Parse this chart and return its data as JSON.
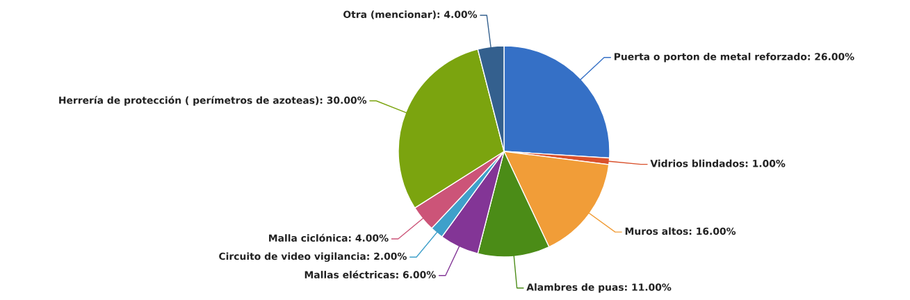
{
  "chart_data": {
    "type": "pie",
    "categories": [
      "Puerta o porton de metal reforzado",
      "Vidrios blindados",
      "Muros altos",
      "Alambres de puas",
      "Mallas eléctricas",
      "Circuito de video vigilancia",
      "Malla ciclónica",
      "Herrería de protección ( perímetros de azoteas)",
      "Otra (mencionar)"
    ],
    "values": [
      26,
      1,
      16,
      11,
      6,
      2,
      4,
      30,
      4
    ],
    "value_labels": [
      "26.00%",
      "1.00%",
      "16.00%",
      "11.00%",
      "6.00%",
      "2.00%",
      "4.00%",
      "30.00%",
      "4.00%"
    ],
    "colors": [
      "#3570c6",
      "#d9512c",
      "#f19d38",
      "#4b8c17",
      "#833596",
      "#3fa0ca",
      "#cc5478",
      "#7ba40f",
      "#34608e"
    ],
    "legend": false
  }
}
